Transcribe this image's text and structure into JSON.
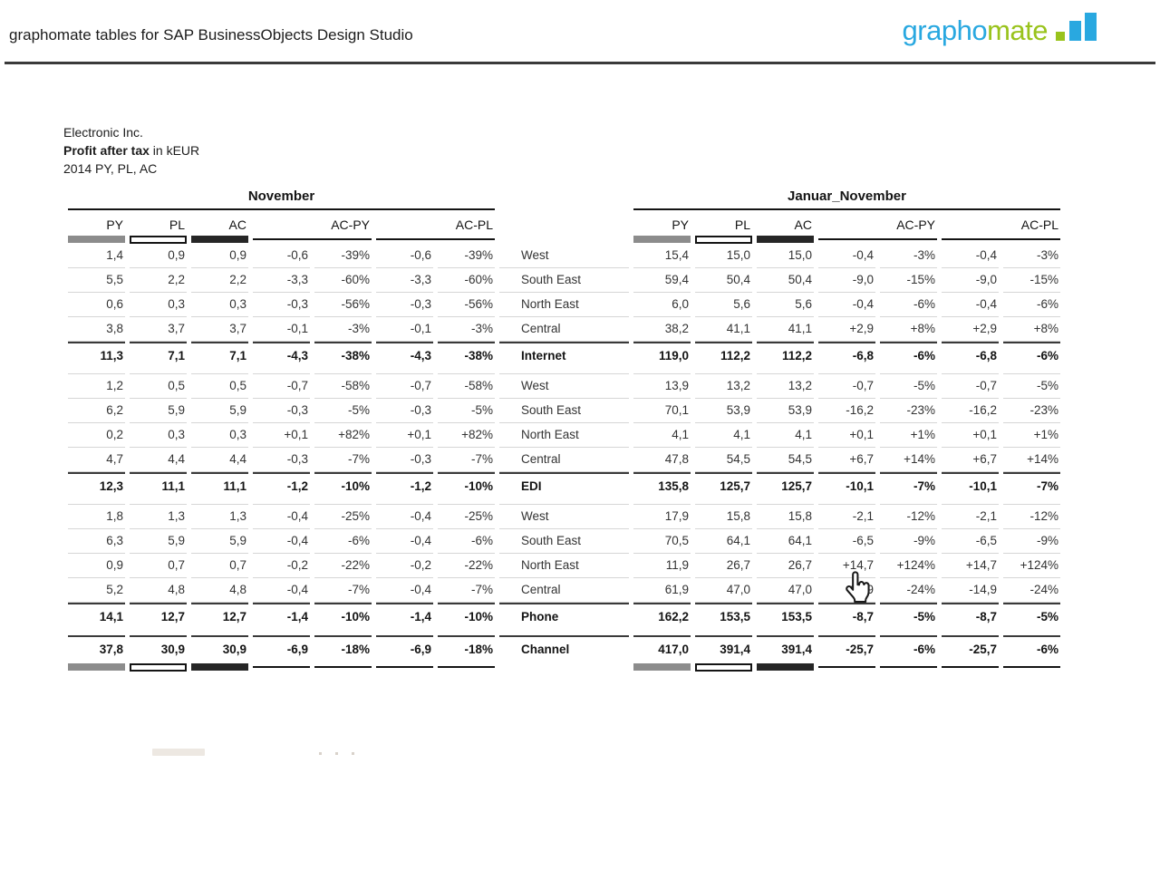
{
  "header": {
    "app_title": "graphomate tables for SAP BusinessObjects Design Studio",
    "logo_text_blue": "grapho",
    "logo_text_green": "mate"
  },
  "report": {
    "company": "Electronic Inc.",
    "metric": "Profit after tax",
    "metric_suffix": " in kEUR",
    "period": "2014 PY, PL, AC"
  },
  "colors": {
    "logo_blue": "#29a8e0",
    "logo_green": "#99c31c",
    "bar_py": "#8c8c8c",
    "bar_ac": "#262626",
    "bar_pl_border": "#141414",
    "rule_dark": "#3a3a3a",
    "separator": "#d6d6d6",
    "text": "#333333",
    "text_strong": "#141414"
  },
  "tables": {
    "left_title": "November",
    "right_title": "Januar_November",
    "columns": [
      "PY",
      "PL",
      "AC",
      "AC-PY",
      "AC-PL"
    ],
    "groups": [
      {
        "rows": [
          {
            "label": "West",
            "left": [
              "1,4",
              "0,9",
              "0,9",
              "-0,6",
              "-39%",
              "-0,6",
              "-39%"
            ],
            "right": [
              "15,4",
              "15,0",
              "15,0",
              "-0,4",
              "-3%",
              "-0,4",
              "-3%"
            ]
          },
          {
            "label": "South East",
            "left": [
              "5,5",
              "2,2",
              "2,2",
              "-3,3",
              "-60%",
              "-3,3",
              "-60%"
            ],
            "right": [
              "59,4",
              "50,4",
              "50,4",
              "-9,0",
              "-15%",
              "-9,0",
              "-15%"
            ]
          },
          {
            "label": "North East",
            "left": [
              "0,6",
              "0,3",
              "0,3",
              "-0,3",
              "-56%",
              "-0,3",
              "-56%"
            ],
            "right": [
              "6,0",
              "5,6",
              "5,6",
              "-0,4",
              "-6%",
              "-0,4",
              "-6%"
            ]
          },
          {
            "label": "Central",
            "left": [
              "3,8",
              "3,7",
              "3,7",
              "-0,1",
              "-3%",
              "-0,1",
              "-3%"
            ],
            "right": [
              "38,2",
              "41,1",
              "41,1",
              "+2,9",
              "+8%",
              "+2,9",
              "+8%"
            ]
          }
        ],
        "total": {
          "label": "Internet",
          "left": [
            "11,3",
            "7,1",
            "7,1",
            "-4,3",
            "-38%",
            "-4,3",
            "-38%"
          ],
          "right": [
            "119,0",
            "112,2",
            "112,2",
            "-6,8",
            "-6%",
            "-6,8",
            "-6%"
          ]
        }
      },
      {
        "rows": [
          {
            "label": "West",
            "left": [
              "1,2",
              "0,5",
              "0,5",
              "-0,7",
              "-58%",
              "-0,7",
              "-58%"
            ],
            "right": [
              "13,9",
              "13,2",
              "13,2",
              "-0,7",
              "-5%",
              "-0,7",
              "-5%"
            ]
          },
          {
            "label": "South East",
            "left": [
              "6,2",
              "5,9",
              "5,9",
              "-0,3",
              "-5%",
              "-0,3",
              "-5%"
            ],
            "right": [
              "70,1",
              "53,9",
              "53,9",
              "-16,2",
              "-23%",
              "-16,2",
              "-23%"
            ]
          },
          {
            "label": "North East",
            "left": [
              "0,2",
              "0,3",
              "0,3",
              "+0,1",
              "+82%",
              "+0,1",
              "+82%"
            ],
            "right": [
              "4,1",
              "4,1",
              "4,1",
              "+0,1",
              "+1%",
              "+0,1",
              "+1%"
            ]
          },
          {
            "label": "Central",
            "left": [
              "4,7",
              "4,4",
              "4,4",
              "-0,3",
              "-7%",
              "-0,3",
              "-7%"
            ],
            "right": [
              "47,8",
              "54,5",
              "54,5",
              "+6,7",
              "+14%",
              "+6,7",
              "+14%"
            ]
          }
        ],
        "total": {
          "label": "EDI",
          "left": [
            "12,3",
            "11,1",
            "11,1",
            "-1,2",
            "-10%",
            "-1,2",
            "-10%"
          ],
          "right": [
            "135,8",
            "125,7",
            "125,7",
            "-10,1",
            "-7%",
            "-10,1",
            "-7%"
          ]
        }
      },
      {
        "rows": [
          {
            "label": "West",
            "left": [
              "1,8",
              "1,3",
              "1,3",
              "-0,4",
              "-25%",
              "-0,4",
              "-25%"
            ],
            "right": [
              "17,9",
              "15,8",
              "15,8",
              "-2,1",
              "-12%",
              "-2,1",
              "-12%"
            ]
          },
          {
            "label": "South East",
            "left": [
              "6,3",
              "5,9",
              "5,9",
              "-0,4",
              "-6%",
              "-0,4",
              "-6%"
            ],
            "right": [
              "70,5",
              "64,1",
              "64,1",
              "-6,5",
              "-9%",
              "-6,5",
              "-9%"
            ]
          },
          {
            "label": "North East",
            "left": [
              "0,9",
              "0,7",
              "0,7",
              "-0,2",
              "-22%",
              "-0,2",
              "-22%"
            ],
            "right": [
              "11,9",
              "26,7",
              "26,7",
              "+14,7",
              "+124%",
              "+14,7",
              "+124%"
            ]
          },
          {
            "label": "Central",
            "left": [
              "5,2",
              "4,8",
              "4,8",
              "-0,4",
              "-7%",
              "-0,4",
              "-7%"
            ],
            "right": [
              "61,9",
              "47,0",
              "47,0",
              "-14,9",
              "-24%",
              "-14,9",
              "-24%"
            ]
          }
        ],
        "total": {
          "label": "Phone",
          "left": [
            "14,1",
            "12,7",
            "12,7",
            "-1,4",
            "-10%",
            "-1,4",
            "-10%"
          ],
          "right": [
            "162,2",
            "153,5",
            "153,5",
            "-8,7",
            "-5%",
            "-8,7",
            "-5%"
          ]
        }
      }
    ],
    "grand_total": {
      "label": "Channel",
      "left": [
        "37,8",
        "30,9",
        "30,9",
        "-6,9",
        "-18%",
        "-6,9",
        "-18%"
      ],
      "right": [
        "417,0",
        "391,4",
        "391,4",
        "-25,7",
        "-6%",
        "-25,7",
        "-6%"
      ]
    }
  }
}
